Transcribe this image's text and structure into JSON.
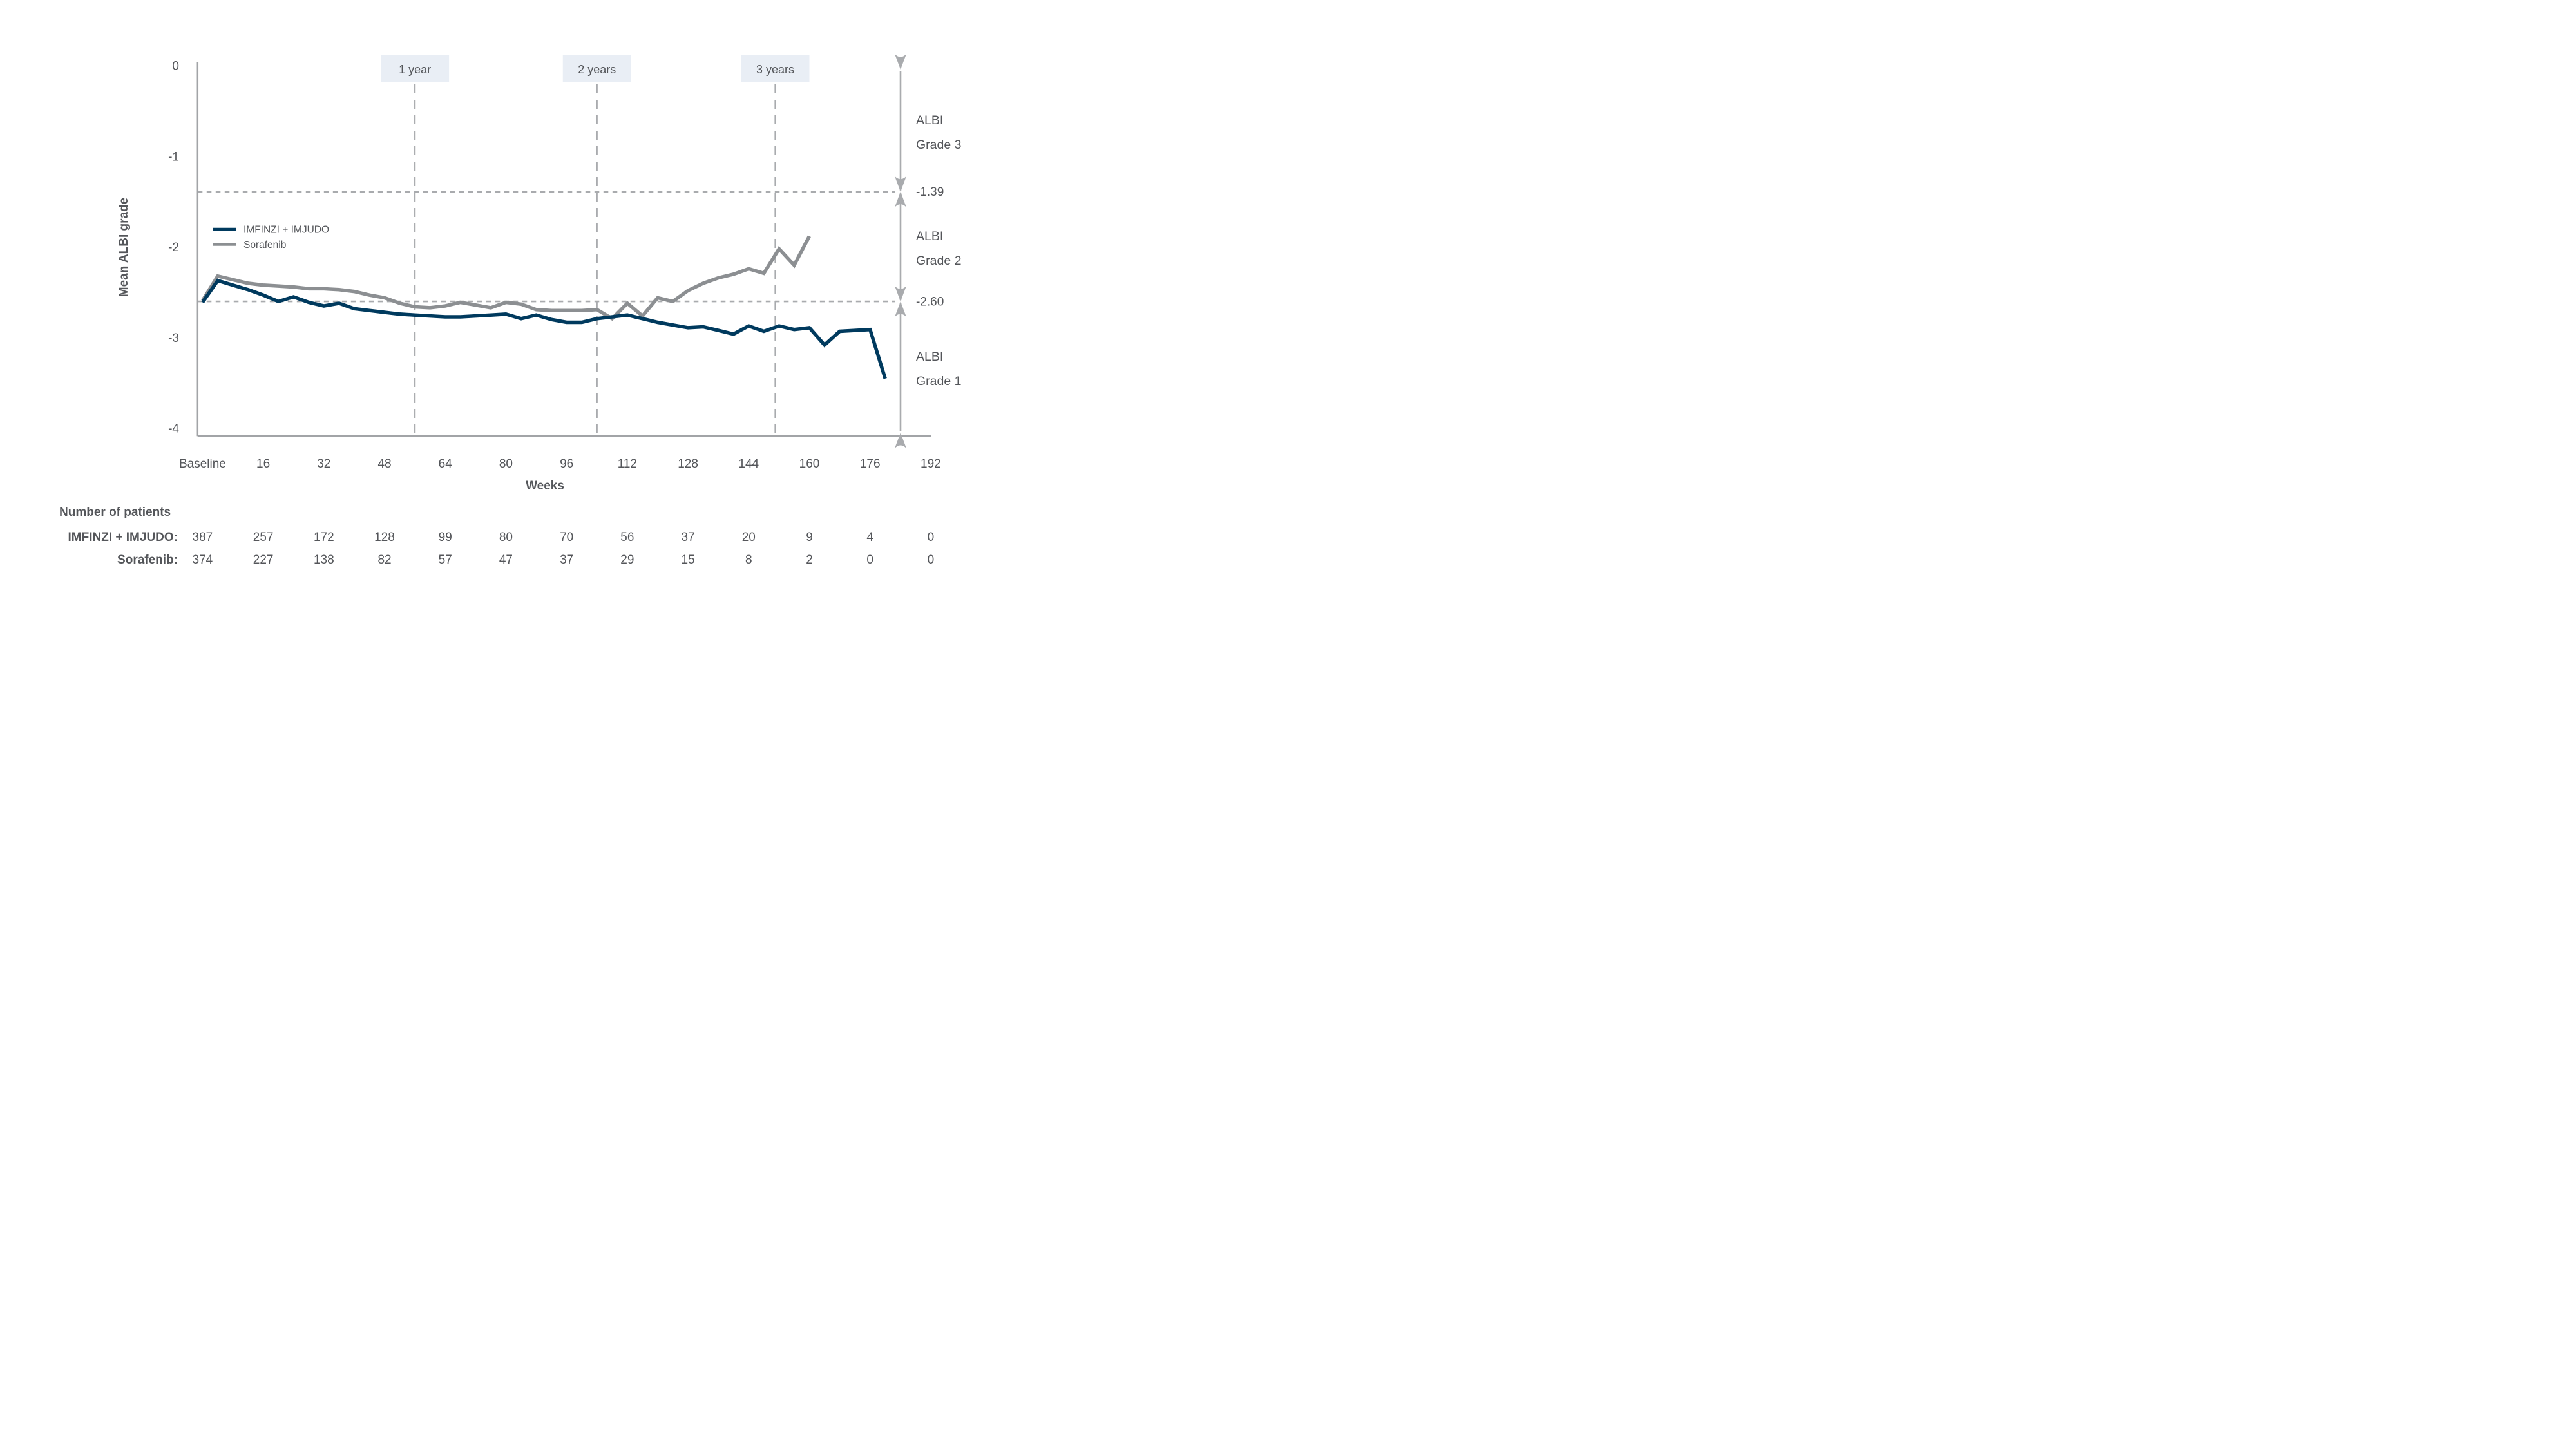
{
  "chart_data": {
    "type": "line",
    "title": "",
    "xlabel": "Weeks",
    "ylabel": "Mean ALBI grade",
    "ylim": [
      -4,
      0
    ],
    "grid": "off",
    "legend_position": "inside-upper-left",
    "colors": {
      "series_1": "#003a5e",
      "series_2": "#8c8f92",
      "dashed_reference": "#a9abae",
      "axis": "#a2a4a7",
      "text": "#54565a",
      "year_box_bg": "#e9eef5"
    },
    "y_ticks": [
      {
        "label": "0",
        "value": 0
      },
      {
        "label": "-1",
        "value": -1
      },
      {
        "label": "-2",
        "value": -2
      },
      {
        "label": "-3",
        "value": -3
      },
      {
        "label": "-4",
        "value": -4
      }
    ],
    "x_ticks": [
      {
        "label": "Baseline",
        "week": 0
      },
      {
        "label": "16",
        "week": 16
      },
      {
        "label": "32",
        "week": 32
      },
      {
        "label": "48",
        "week": 48
      },
      {
        "label": "64",
        "week": 64
      },
      {
        "label": "80",
        "week": 80
      },
      {
        "label": "96",
        "week": 96
      },
      {
        "label": "112",
        "week": 112
      },
      {
        "label": "128",
        "week": 128
      },
      {
        "label": "144",
        "week": 144
      },
      {
        "label": "160",
        "week": 160
      },
      {
        "label": "176",
        "week": 176
      },
      {
        "label": "192",
        "week": 192
      }
    ],
    "year_markers": [
      {
        "label": "1 year",
        "week": 56
      },
      {
        "label": "2 years",
        "week": 104
      },
      {
        "label": "3 years",
        "week": 151
      }
    ],
    "reference_lines": [
      {
        "label": "-1.39",
        "value": -1.39
      },
      {
        "label": "-2.60",
        "value": -2.6
      }
    ],
    "grade_bands": [
      {
        "lines": [
          "ALBI",
          "Grade 3"
        ],
        "from": 0,
        "to": -1.39
      },
      {
        "lines": [
          "ALBI",
          "Grade 2"
        ],
        "from": -1.39,
        "to": -2.6
      },
      {
        "lines": [
          "ALBI",
          "Grade 1"
        ],
        "from": -2.6,
        "to": -4
      }
    ],
    "series": [
      {
        "name": "IMFINZI + IMJUDO",
        "color": "#003a5e",
        "points": [
          [
            0,
            -2.61
          ],
          [
            4,
            -2.37
          ],
          [
            8,
            -2.42
          ],
          [
            12,
            -2.47
          ],
          [
            16,
            -2.53
          ],
          [
            20,
            -2.6
          ],
          [
            24,
            -2.55
          ],
          [
            28,
            -2.61
          ],
          [
            32,
            -2.65
          ],
          [
            36,
            -2.62
          ],
          [
            40,
            -2.68
          ],
          [
            44,
            -2.7
          ],
          [
            48,
            -2.72
          ],
          [
            52,
            -2.74
          ],
          [
            56,
            -2.75
          ],
          [
            60,
            -2.76
          ],
          [
            64,
            -2.77
          ],
          [
            68,
            -2.77
          ],
          [
            72,
            -2.76
          ],
          [
            76,
            -2.75
          ],
          [
            80,
            -2.74
          ],
          [
            84,
            -2.79
          ],
          [
            88,
            -2.75
          ],
          [
            92,
            -2.8
          ],
          [
            96,
            -2.83
          ],
          [
            100,
            -2.83
          ],
          [
            104,
            -2.79
          ],
          [
            108,
            -2.77
          ],
          [
            112,
            -2.75
          ],
          [
            116,
            -2.79
          ],
          [
            120,
            -2.83
          ],
          [
            124,
            -2.86
          ],
          [
            128,
            -2.89
          ],
          [
            132,
            -2.88
          ],
          [
            136,
            -2.92
          ],
          [
            140,
            -2.96
          ],
          [
            144,
            -2.87
          ],
          [
            148,
            -2.93
          ],
          [
            152,
            -2.87
          ],
          [
            156,
            -2.91
          ],
          [
            160,
            -2.89
          ],
          [
            164,
            -3.08
          ],
          [
            168,
            -2.93
          ],
          [
            172,
            -2.92
          ],
          [
            176,
            -2.91
          ],
          [
            180,
            -3.45
          ]
        ]
      },
      {
        "name": "Sorafenib",
        "color": "#8c8f92",
        "points": [
          [
            0,
            -2.59
          ],
          [
            4,
            -2.32
          ],
          [
            8,
            -2.36
          ],
          [
            12,
            -2.4
          ],
          [
            16,
            -2.42
          ],
          [
            20,
            -2.43
          ],
          [
            24,
            -2.44
          ],
          [
            28,
            -2.46
          ],
          [
            32,
            -2.46
          ],
          [
            36,
            -2.47
          ],
          [
            40,
            -2.49
          ],
          [
            44,
            -2.53
          ],
          [
            48,
            -2.56
          ],
          [
            52,
            -2.62
          ],
          [
            56,
            -2.66
          ],
          [
            60,
            -2.67
          ],
          [
            64,
            -2.65
          ],
          [
            68,
            -2.61
          ],
          [
            72,
            -2.64
          ],
          [
            76,
            -2.67
          ],
          [
            80,
            -2.61
          ],
          [
            84,
            -2.63
          ],
          [
            88,
            -2.69
          ],
          [
            92,
            -2.7
          ],
          [
            96,
            -2.7
          ],
          [
            100,
            -2.7
          ],
          [
            104,
            -2.69
          ],
          [
            108,
            -2.79
          ],
          [
            112,
            -2.62
          ],
          [
            116,
            -2.76
          ],
          [
            120,
            -2.56
          ],
          [
            124,
            -2.6
          ],
          [
            128,
            -2.48
          ],
          [
            132,
            -2.4
          ],
          [
            136,
            -2.34
          ],
          [
            140,
            -2.3
          ],
          [
            144,
            -2.24
          ],
          [
            148,
            -2.29
          ],
          [
            152,
            -2.02
          ],
          [
            156,
            -2.2
          ],
          [
            160,
            -1.88
          ]
        ]
      }
    ]
  },
  "patients_table": {
    "title": "Number of patients",
    "rows": [
      {
        "label": "IMFINZI + IMJUDO:",
        "values": [
          387,
          257,
          172,
          128,
          99,
          80,
          70,
          56,
          37,
          20,
          9,
          4,
          0
        ]
      },
      {
        "label": "Sorafenib:",
        "values": [
          374,
          227,
          138,
          82,
          57,
          47,
          37,
          29,
          15,
          8,
          2,
          0,
          0
        ]
      }
    ]
  }
}
